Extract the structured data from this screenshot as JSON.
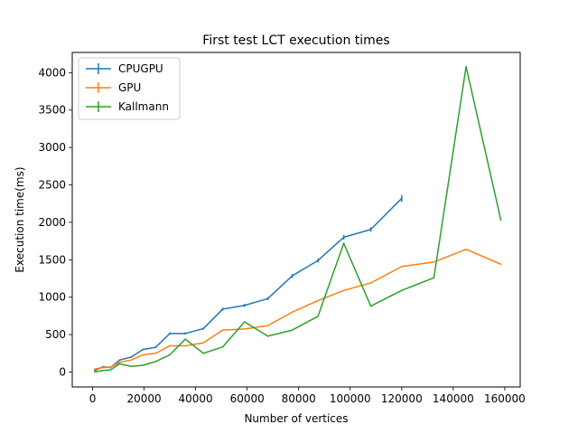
{
  "chart_data": {
    "type": "line",
    "title": "First test LCT execution times",
    "xlabel": "Number of vertices",
    "ylabel": "Execution time(ms)",
    "xlim": [
      -7900,
      166000
    ],
    "ylim": [
      -200,
      4270
    ],
    "xticks": [
      0,
      20000,
      40000,
      60000,
      80000,
      100000,
      120000,
      140000,
      160000
    ],
    "yticks": [
      0,
      500,
      1000,
      1500,
      2000,
      2500,
      3000,
      3500,
      4000
    ],
    "xtick_labels": [
      "0",
      "20000",
      "40000",
      "60000",
      "80000",
      "100000",
      "120000",
      "140000",
      "160000"
    ],
    "ytick_labels": [
      "0",
      "500",
      "1000",
      "1500",
      "2000",
      "2500",
      "3000",
      "3500",
      "4000"
    ],
    "legend_position": "top-left",
    "grid": false,
    "series": [
      {
        "name": "CPUGPU",
        "color": "#1f77b4",
        "error_bars": true,
        "x": [
          800,
          4000,
          7000,
          10500,
          15000,
          19500,
          24500,
          30000,
          36000,
          43000,
          50500,
          59000,
          68000,
          77500,
          87500,
          97500,
          108000,
          120000
        ],
        "y": [
          20,
          70,
          60,
          160,
          200,
          300,
          330,
          515,
          515,
          580,
          840,
          890,
          980,
          1285,
          1490,
          1800,
          1905,
          2320
        ],
        "err": [
          8,
          8,
          8,
          10,
          10,
          12,
          12,
          15,
          15,
          15,
          20,
          20,
          20,
          25,
          25,
          30,
          30,
          45
        ]
      },
      {
        "name": "GPU",
        "color": "#ff7f0e",
        "error_bars": true,
        "x": [
          800,
          4000,
          7000,
          10500,
          15000,
          19500,
          24500,
          30000,
          36000,
          43000,
          50500,
          59000,
          68000,
          77500,
          87500,
          97500,
          108000,
          120000,
          132500,
          145000,
          158500
        ],
        "y": [
          40,
          60,
          65,
          130,
          160,
          230,
          250,
          350,
          350,
          390,
          560,
          575,
          620,
          800,
          955,
          1090,
          1190,
          1410,
          1470,
          1640,
          1440
        ],
        "err": [
          5,
          5,
          5,
          5,
          5,
          5,
          5,
          5,
          5,
          5,
          5,
          5,
          5,
          5,
          5,
          5,
          5,
          5,
          5,
          5,
          5
        ]
      },
      {
        "name": "Kallmann",
        "color": "#2ca02c",
        "error_bars": true,
        "x": [
          800,
          4000,
          7000,
          10500,
          15000,
          19500,
          24500,
          30000,
          36000,
          43000,
          50500,
          59000,
          68000,
          77500,
          87500,
          97500,
          108000,
          120000,
          132500,
          145000,
          158500
        ],
        "y": [
          0,
          20,
          30,
          110,
          75,
          90,
          140,
          230,
          440,
          250,
          335,
          670,
          480,
          560,
          745,
          1720,
          880,
          1090,
          1260,
          4080,
          2030
        ],
        "err": [
          5,
          5,
          5,
          5,
          5,
          5,
          5,
          5,
          5,
          5,
          5,
          5,
          5,
          5,
          5,
          5,
          5,
          5,
          5,
          5,
          5
        ]
      }
    ]
  }
}
